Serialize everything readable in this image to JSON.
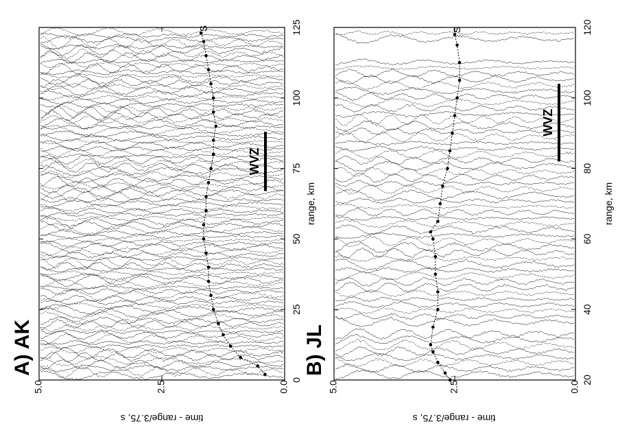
{
  "figure": {
    "panels": [
      {
        "id": "AK",
        "label": "A) AK",
        "zone_label": "WVZ",
        "phase_label": "S",
        "range_axis": {
          "title": "range, km",
          "min": 0,
          "max": 125,
          "ticks": [
            "0",
            "25",
            "50",
            "75",
            "100",
            "125"
          ]
        },
        "time_axis": {
          "title": "time - range/3.75, s",
          "min": 0,
          "max": 5,
          "ticks": [
            "0.0",
            "2.5",
            "5.0"
          ]
        },
        "wvz_range": [
          67,
          88
        ],
        "s_picks": [
          [
            2,
            0.4
          ],
          [
            5,
            0.55
          ],
          [
            8,
            0.9
          ],
          [
            12,
            1.1
          ],
          [
            16,
            1.25
          ],
          [
            20,
            1.35
          ],
          [
            25,
            1.45
          ],
          [
            30,
            1.5
          ],
          [
            35,
            1.55
          ],
          [
            40,
            1.55
          ],
          [
            45,
            1.6
          ],
          [
            50,
            1.65
          ],
          [
            55,
            1.65
          ],
          [
            60,
            1.6
          ],
          [
            65,
            1.6
          ],
          [
            70,
            1.55
          ],
          [
            75,
            1.5
          ],
          [
            80,
            1.45
          ],
          [
            85,
            1.45
          ],
          [
            90,
            1.4
          ],
          [
            95,
            1.45
          ],
          [
            100,
            1.45
          ],
          [
            105,
            1.5
          ],
          [
            110,
            1.55
          ],
          [
            115,
            1.6
          ],
          [
            120,
            1.65
          ],
          [
            123,
            1.7
          ]
        ]
      },
      {
        "id": "JL",
        "label": "B) JL",
        "zone_label": "WVZ",
        "phase_label": "S",
        "range_axis": {
          "title": "range, km",
          "min": 20,
          "max": 120,
          "ticks": [
            "20",
            "40",
            "60",
            "80",
            "100",
            "120"
          ]
        },
        "time_axis": {
          "title": "time - range/3.75, s",
          "min": 0,
          "max": 5,
          "ticks": [
            "0.0",
            "2.5",
            "5.0"
          ]
        },
        "wvz_range": [
          82,
          104
        ],
        "s_picks": [
          [
            20,
            2.6
          ],
          [
            22,
            2.7
          ],
          [
            25,
            2.85
          ],
          [
            28,
            2.95
          ],
          [
            30,
            3.0
          ],
          [
            35,
            2.95
          ],
          [
            40,
            2.85
          ],
          [
            45,
            2.85
          ],
          [
            50,
            2.9
          ],
          [
            55,
            2.9
          ],
          [
            60,
            2.95
          ],
          [
            62,
            3.0
          ],
          [
            65,
            2.85
          ],
          [
            70,
            2.8
          ],
          [
            75,
            2.75
          ],
          [
            80,
            2.65
          ],
          [
            85,
            2.6
          ],
          [
            90,
            2.55
          ],
          [
            95,
            2.5
          ],
          [
            100,
            2.45
          ],
          [
            105,
            2.4
          ],
          [
            110,
            2.4
          ],
          [
            115,
            2.45
          ],
          [
            118,
            2.5
          ]
        ]
      }
    ]
  }
}
